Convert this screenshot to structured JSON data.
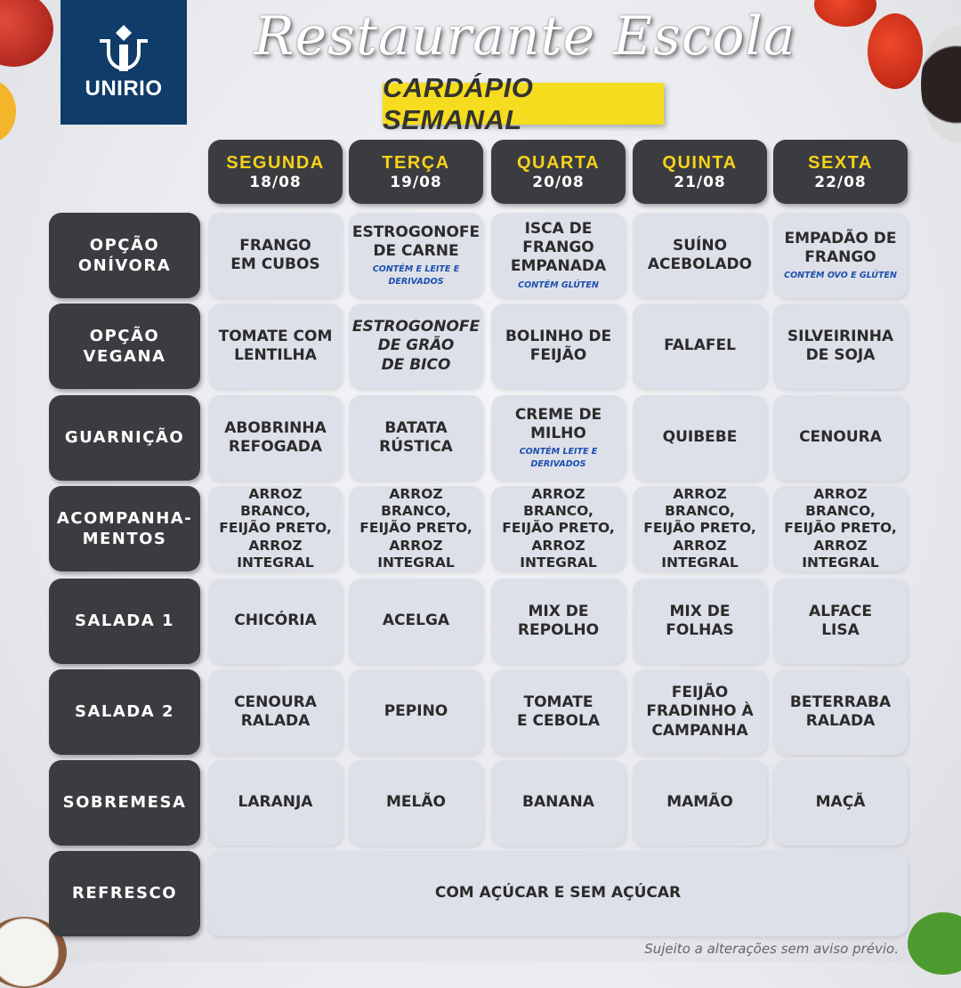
{
  "header": {
    "logo_text": "UNIRIO",
    "title": "Restaurante Escola",
    "banner": "CARDÁPIO SEMANAL"
  },
  "days": [
    {
      "name": "SEGUNDA",
      "date": "18/08"
    },
    {
      "name": "TERÇA",
      "date": "19/08"
    },
    {
      "name": "QUARTA",
      "date": "20/08"
    },
    {
      "name": "QUINTA",
      "date": "21/08"
    },
    {
      "name": "SEXTA",
      "date": "22/08"
    }
  ],
  "rows": [
    {
      "label": "OPÇÃO\nONÍVORA",
      "items": [
        {
          "text": "FRANGO\nEM CUBOS"
        },
        {
          "text": "ESTROGONOFE\nDE CARNE",
          "note": "CONTÉM E LEITE E\nDERIVADOS"
        },
        {
          "text": "ISCA DE\nFRANGO\nEMPANADA",
          "note": "CONTÉM GLÚTEN"
        },
        {
          "text": "SUÍNO\nACEBOLADO"
        },
        {
          "text": "EMPADÃO DE\nFRANGO",
          "note": "CONTÉM OVO E GLÚTEN"
        }
      ]
    },
    {
      "label": "OPÇÃO\nVEGANA",
      "items": [
        {
          "text": "TOMATE COM\nLENTILHA"
        },
        {
          "text": "ESTROGONOFE\nDE GRÃO\nDE BICO",
          "italic": true
        },
        {
          "text": "BOLINHO DE\nFEIJÃO"
        },
        {
          "text": "FALAFEL"
        },
        {
          "text": "SILVEIRINHA\nDE SOJA"
        }
      ]
    },
    {
      "label": "GUARNIÇÃO",
      "items": [
        {
          "text": "ABOBRINHA\nREFOGADA"
        },
        {
          "text": "BATATA\nRÚSTICA"
        },
        {
          "text": "CREME DE\nMILHO",
          "note": "CONTÉM LEITE E\nDERIVADOS"
        },
        {
          "text": "QUIBEBE"
        },
        {
          "text": "CENOURA"
        }
      ]
    },
    {
      "label": "ACOMPANHA-\nMENTOS",
      "items": [
        {
          "text": "ARROZ BRANCO,\nFEIJÃO PRETO,\nARROZ INTEGRAL",
          "small": true
        },
        {
          "text": "ARROZ BRANCO,\nFEIJÃO PRETO,\nARROZ INTEGRAL",
          "small": true
        },
        {
          "text": "ARROZ BRANCO,\nFEIJÃO PRETO,\nARROZ INTEGRAL",
          "small": true
        },
        {
          "text": "ARROZ BRANCO,\nFEIJÃO PRETO,\nARROZ INTEGRAL",
          "small": true
        },
        {
          "text": "ARROZ BRANCO,\nFEIJÃO PRETO,\nARROZ INTEGRAL",
          "small": true
        }
      ]
    },
    {
      "label": "SALADA 1",
      "items": [
        {
          "text": "CHICÓRIA"
        },
        {
          "text": "ACELGA"
        },
        {
          "text": "MIX DE\nREPOLHO"
        },
        {
          "text": "MIX DE\nFOLHAS"
        },
        {
          "text": "ALFACE\nLISA"
        }
      ]
    },
    {
      "label": "SALADA 2",
      "items": [
        {
          "text": "CENOURA\nRALADA"
        },
        {
          "text": "PEPINO"
        },
        {
          "text": "TOMATE\nE CEBOLA"
        },
        {
          "text": "FEIJÃO\nFRADINHO À\nCAMPANHA"
        },
        {
          "text": "BETERRABA\nRALADA"
        }
      ]
    },
    {
      "label": "SOBREMESA",
      "items": [
        {
          "text": "LARANJA"
        },
        {
          "text": "MELÃO"
        },
        {
          "text": "BANANA"
        },
        {
          "text": "MAMÃO"
        },
        {
          "text": "MAÇÃ"
        }
      ]
    },
    {
      "label": "REFRESCO",
      "span": "COM AÇÚCAR E SEM AÇÚCAR"
    }
  ],
  "footer": "Sujeito a alterações sem aviso prévio.",
  "colors": {
    "logo_bg": "#0f3c68",
    "banner": "#f6dc1e",
    "day_name": "#f7d21a",
    "label_bg": "#3b3c40",
    "cell_bg": "#dde0e8",
    "note": "#1d4fb0"
  }
}
